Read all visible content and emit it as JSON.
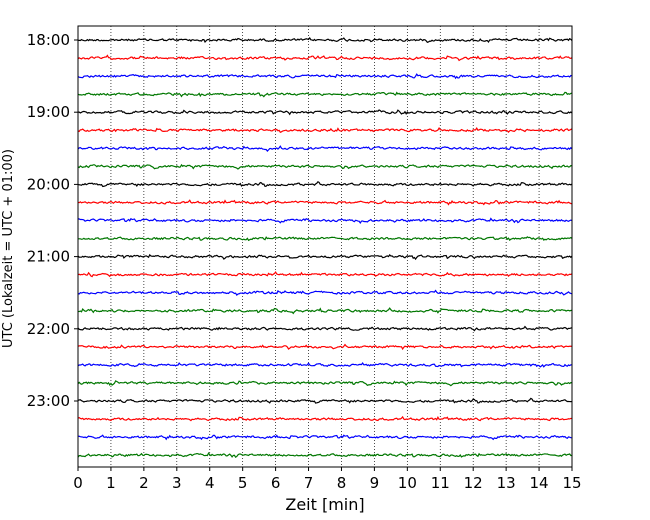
{
  "chart_data": {
    "type": "line",
    "title": "",
    "xlabel": "Zeit  [min]",
    "ylabel": "UTC (Lokalzeit = UTC + 01:00)",
    "xlim": [
      0,
      15
    ],
    "x_ticks": [
      0,
      1,
      2,
      3,
      4,
      5,
      6,
      7,
      8,
      9,
      10,
      11,
      12,
      13,
      14,
      15
    ],
    "y_tick_labels": [
      "18:00",
      "19:00",
      "20:00",
      "21:00",
      "22:00",
      "23:00"
    ],
    "grid": "vertical dotted lines at each minute",
    "trace_colors": [
      "#000000",
      "#ff0000",
      "#0000ff",
      "#007700"
    ],
    "traces": [
      {
        "start": "18:00",
        "color": "#000000"
      },
      {
        "start": "18:15",
        "color": "#ff0000"
      },
      {
        "start": "18:30",
        "color": "#0000ff"
      },
      {
        "start": "18:45",
        "color": "#007700"
      },
      {
        "start": "19:00",
        "color": "#000000"
      },
      {
        "start": "19:15",
        "color": "#ff0000"
      },
      {
        "start": "19:30",
        "color": "#0000ff"
      },
      {
        "start": "19:45",
        "color": "#007700"
      },
      {
        "start": "20:00",
        "color": "#000000"
      },
      {
        "start": "20:15",
        "color": "#ff0000"
      },
      {
        "start": "20:30",
        "color": "#0000ff"
      },
      {
        "start": "20:45",
        "color": "#007700"
      },
      {
        "start": "21:00",
        "color": "#000000"
      },
      {
        "start": "21:15",
        "color": "#ff0000"
      },
      {
        "start": "21:30",
        "color": "#0000ff"
      },
      {
        "start": "21:45",
        "color": "#007700"
      },
      {
        "start": "22:00",
        "color": "#000000"
      },
      {
        "start": "22:15",
        "color": "#ff0000"
      },
      {
        "start": "22:30",
        "color": "#0000ff"
      },
      {
        "start": "22:45",
        "color": "#007700"
      },
      {
        "start": "23:00",
        "color": "#000000"
      },
      {
        "start": "23:15",
        "color": "#ff0000"
      },
      {
        "start": "23:30",
        "color": "#0000ff"
      },
      {
        "start": "23:45",
        "color": "#007700"
      }
    ]
  }
}
